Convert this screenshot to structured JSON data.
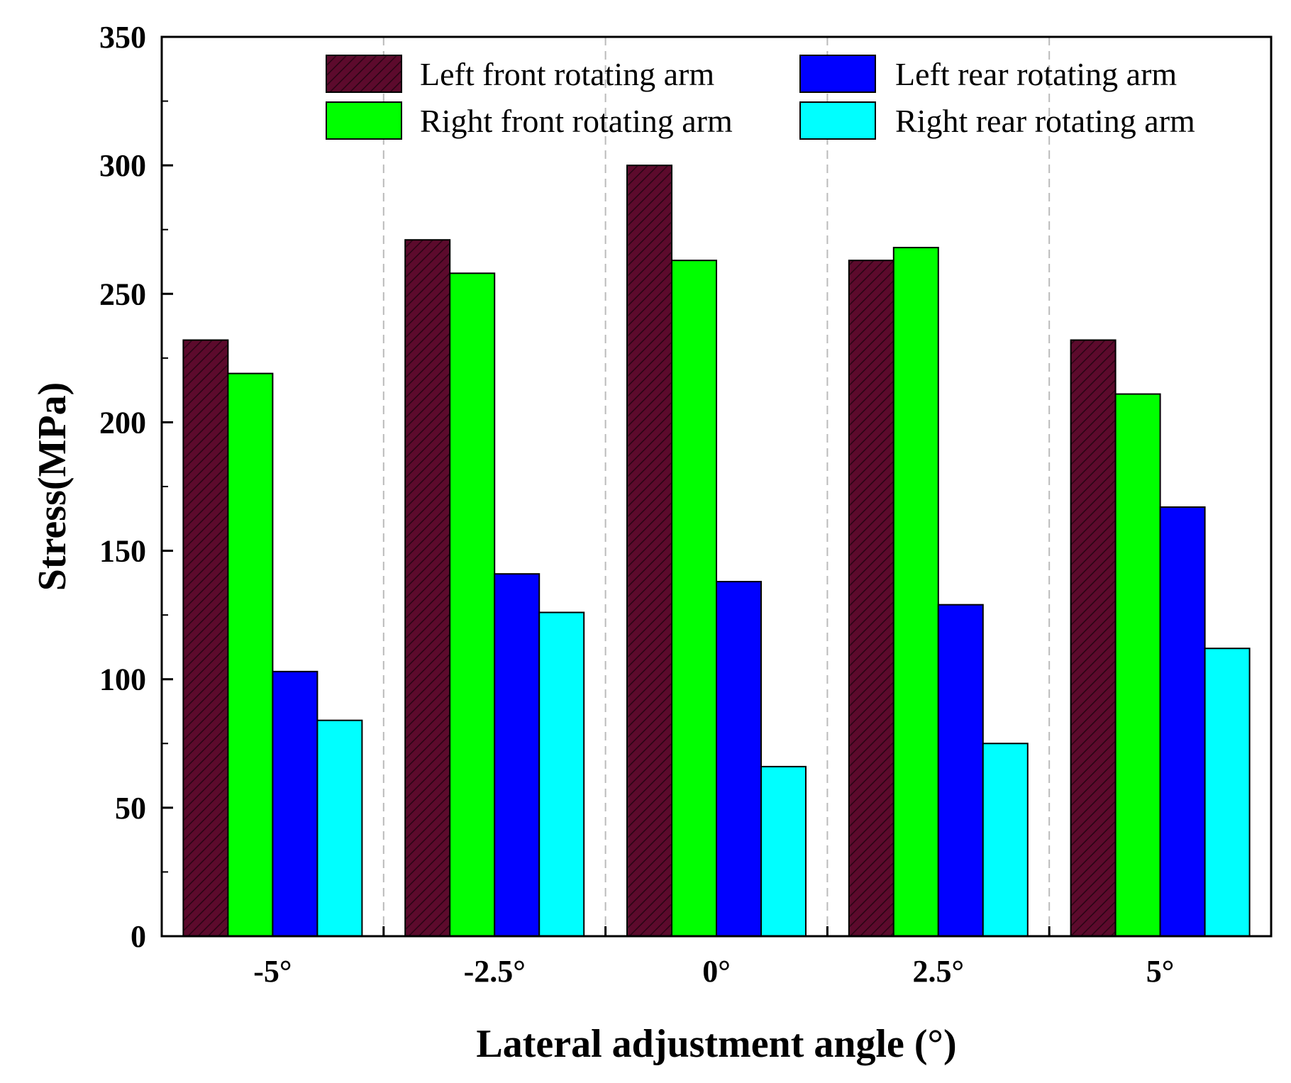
{
  "chart_data": {
    "type": "bar",
    "title": "",
    "xlabel": "Lateral adjustment angle (°)",
    "ylabel": "Stress(MPa)",
    "ylim": [
      0,
      350
    ],
    "yticks": [
      0,
      50,
      100,
      150,
      200,
      250,
      300,
      350
    ],
    "categories": [
      "-5°",
      "-2.5°",
      "0°",
      "2.5°",
      "5°"
    ],
    "legend_position": "top",
    "series": [
      {
        "name": "Left front rotating arm",
        "values": [
          232,
          271,
          300,
          263,
          232
        ],
        "color": "#5c0a2c",
        "pattern": "hatch"
      },
      {
        "name": "Right front rotating arm",
        "values": [
          219,
          258,
          263,
          268,
          211
        ],
        "color": "#00ff00"
      },
      {
        "name": "Left rear rotating arm",
        "values": [
          103,
          141,
          138,
          129,
          167
        ],
        "color": "#0000ff"
      },
      {
        "name": "Right rear rotating arm",
        "values": [
          84,
          126,
          66,
          75,
          112
        ],
        "color": "#00ffff"
      }
    ]
  }
}
